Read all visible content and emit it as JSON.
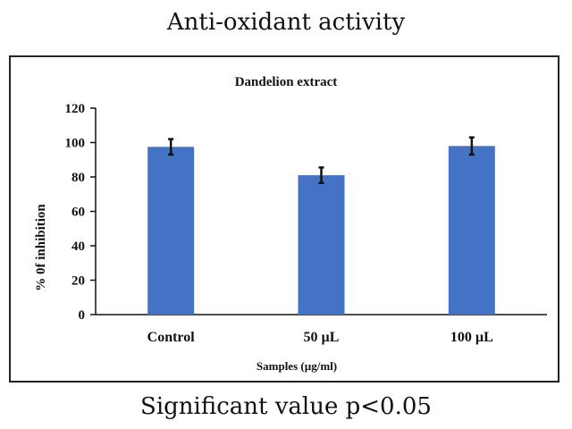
{
  "header": {
    "title": "Anti-oxidant activity"
  },
  "footer": {
    "note": "Significant value  p<0.05"
  },
  "chart_data": {
    "type": "bar",
    "title": "Dandelion extract",
    "categories": [
      "Control",
      "50 µL",
      "100 µL"
    ],
    "values": [
      97.5,
      81,
      98
    ],
    "errors": [
      4.5,
      4.5,
      5
    ],
    "xlabel": "Samples (µg/ml)",
    "ylabel": "% 0f inhibition",
    "ylim": [
      0,
      120
    ],
    "yticks": [
      0,
      20,
      40,
      60,
      80,
      100,
      120
    ],
    "grid": false,
    "legend": "none",
    "bar_color": "#4472C4"
  }
}
